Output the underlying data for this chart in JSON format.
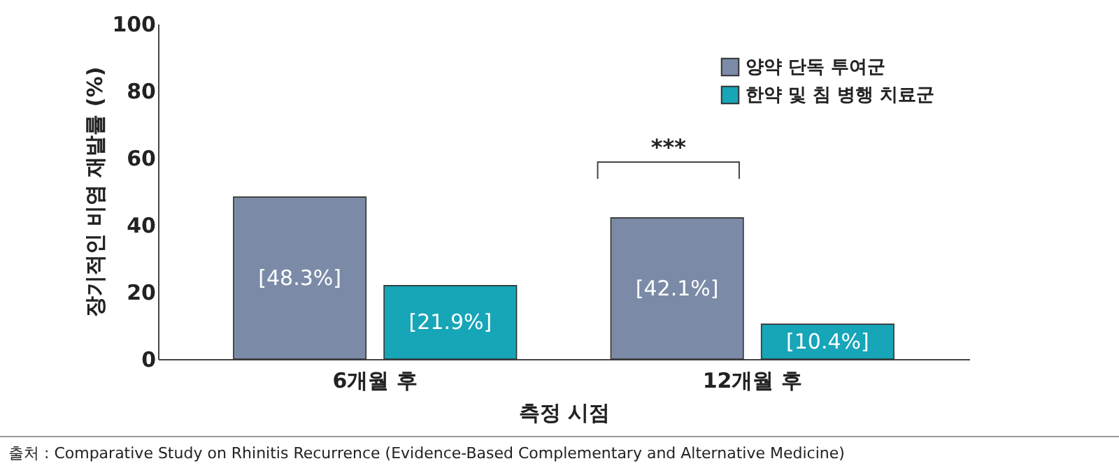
{
  "chart_data": {
    "type": "bar",
    "xlabel": "측정 시점",
    "ylabel": "장기적인 비염 재발률 (%)",
    "categories": [
      "6개월 후",
      "12개월 후"
    ],
    "series": [
      {
        "name": "양약 단독 투여군",
        "color": "#7b8ba7",
        "values": [
          48.3,
          42.1
        ],
        "value_labels": [
          "[48.3%]",
          "[42.1%]"
        ]
      },
      {
        "name": "한약 및 침 병행 치료군",
        "color": "#17a5b8",
        "values": [
          21.9,
          10.4
        ],
        "value_labels": [
          "[21.9%]",
          "[10.4%]"
        ]
      }
    ],
    "ylim": [
      0,
      100
    ],
    "yticks": [
      0,
      20,
      40,
      60,
      80,
      100
    ],
    "grid": false,
    "legend": "top right",
    "annotations": [
      "***",
      "출처 : Comparative Study on Rhinitis Recurrence (Evidence-Based Complementary and Alternative Medicine)"
    ]
  }
}
